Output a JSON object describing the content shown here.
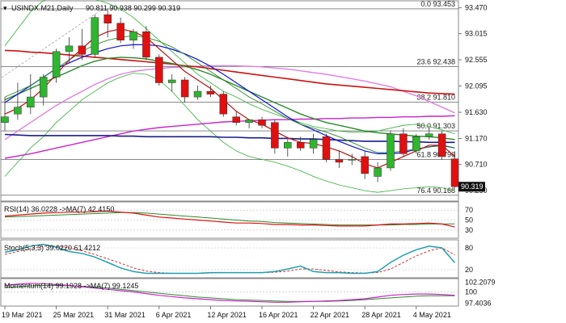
{
  "header": {
    "symbol": "USINDX.M21,Daily",
    "ohlc": "90.811 90.938 90.299 90.319"
  },
  "price_axis": {
    "ticks": [
      "93.470",
      "93.015",
      "92.555",
      "92.095",
      "91.630",
      "91.170",
      "90.710",
      "90.250"
    ],
    "tick_values": [
      93.47,
      93.015,
      92.555,
      92.095,
      91.63,
      91.17,
      90.71,
      90.25
    ],
    "ylim": [
      90.08,
      93.58
    ],
    "last_price": "90.319",
    "last_value": 90.319
  },
  "fib_levels": [
    {
      "label": "0.0 93.453",
      "value": 93.453
    },
    {
      "label": "23.6 92.438",
      "value": 92.438
    },
    {
      "label": "38.2 91.810",
      "value": 91.81
    },
    {
      "label": "50.0 91.303",
      "value": 91.303
    },
    {
      "label": "61.8 90.796",
      "value": 90.796
    },
    {
      "label": "76.4 90.168",
      "value": 90.168
    }
  ],
  "x_axis": {
    "labels": [
      "19 Mar 2021",
      "25 Mar 2021",
      "31 Mar 2021",
      "6 Apr 2021",
      "12 Apr 2021",
      "16 Apr 2021",
      "22 Apr 2021",
      "28 Apr 2021",
      "4 May 2021"
    ],
    "label_bar_index": [
      0,
      4,
      8,
      12,
      16,
      20,
      24,
      28,
      32
    ]
  },
  "rsi": {
    "label": "RSI(14) 36.0228 ->MA(7) 42.4150",
    "ticks": [
      "70",
      "50",
      "30"
    ],
    "tick_values": [
      70,
      50,
      30
    ],
    "ylim": [
      15,
      85
    ]
  },
  "stoch": {
    "label": "Stoch(5,3,3) 39.0220 61.4212",
    "ticks": [
      "80",
      "20"
    ],
    "tick_values": [
      80,
      20
    ],
    "ylim": [
      0,
      100
    ]
  },
  "momentum": {
    "label": "Momentum(14) 99.1928 ->MA(7) 99.1245",
    "ticks": [
      "102.2079",
      "100",
      "97.4036"
    ],
    "tick_values": [
      102.2079,
      100,
      97.4036
    ],
    "ylim": [
      96.9,
      102.9
    ]
  },
  "colors": {
    "bull": "#2fb52f",
    "bear": "#e01010",
    "sma_red": "#cc1111",
    "sma_navy": "#1a1a8c",
    "sma_magenta": "#cc22cc",
    "sma_pink": "#e080e0",
    "sma_green": "#2a8a2a",
    "bb": "#35b035",
    "fast_red": "#b81010",
    "fast_green": "#2a8a2a",
    "fast_blue": "#1010dd",
    "stoch_k": "#20a0b0",
    "stoch_d": "#cc2020"
  },
  "chart_data": {
    "type": "candlestick",
    "title": "USINDX.M21,Daily",
    "candles": [
      {
        "o": 91.45,
        "h": 91.9,
        "l": 91.3,
        "c": 91.55
      },
      {
        "o": 91.6,
        "h": 92.15,
        "l": 91.5,
        "c": 91.72
      },
      {
        "o": 91.72,
        "h": 92.3,
        "l": 91.6,
        "c": 91.9
      },
      {
        "o": 91.9,
        "h": 92.3,
        "l": 91.75,
        "c": 92.25
      },
      {
        "o": 92.25,
        "h": 92.75,
        "l": 92.15,
        "c": 92.7
      },
      {
        "o": 92.7,
        "h": 92.95,
        "l": 92.5,
        "c": 92.8
      },
      {
        "o": 92.8,
        "h": 93.1,
        "l": 92.55,
        "c": 92.65
      },
      {
        "o": 92.65,
        "h": 93.35,
        "l": 92.6,
        "c": 93.3
      },
      {
        "o": 93.35,
        "h": 93.45,
        "l": 92.95,
        "c": 93.2
      },
      {
        "o": 93.2,
        "h": 93.3,
        "l": 92.85,
        "c": 92.9
      },
      {
        "o": 92.9,
        "h": 93.1,
        "l": 92.75,
        "c": 93.05
      },
      {
        "o": 93.05,
        "h": 93.15,
        "l": 92.55,
        "c": 92.6
      },
      {
        "o": 92.6,
        "h": 92.65,
        "l": 92.1,
        "c": 92.15
      },
      {
        "o": 92.15,
        "h": 92.3,
        "l": 92.0,
        "c": 92.2
      },
      {
        "o": 92.2,
        "h": 92.25,
        "l": 91.8,
        "c": 91.9
      },
      {
        "o": 91.9,
        "h": 92.1,
        "l": 91.85,
        "c": 92.0
      },
      {
        "o": 92.0,
        "h": 92.1,
        "l": 91.9,
        "c": 91.95
      },
      {
        "o": 91.95,
        "h": 92.0,
        "l": 91.55,
        "c": 91.6
      },
      {
        "o": 91.55,
        "h": 91.65,
        "l": 91.4,
        "c": 91.45
      },
      {
        "o": 91.45,
        "h": 91.5,
        "l": 91.35,
        "c": 91.5
      },
      {
        "o": 91.5,
        "h": 91.55,
        "l": 91.35,
        "c": 91.4
      },
      {
        "o": 91.45,
        "h": 91.5,
        "l": 90.9,
        "c": 91.0
      },
      {
        "o": 91.0,
        "h": 91.15,
        "l": 90.85,
        "c": 91.1
      },
      {
        "o": 91.1,
        "h": 91.2,
        "l": 90.95,
        "c": 91.0
      },
      {
        "o": 91.0,
        "h": 91.25,
        "l": 90.9,
        "c": 91.15
      },
      {
        "o": 91.2,
        "h": 91.25,
        "l": 90.75,
        "c": 90.8
      },
      {
        "o": 90.8,
        "h": 90.95,
        "l": 90.65,
        "c": 90.75
      },
      {
        "o": 90.8,
        "h": 90.9,
        "l": 90.7,
        "c": 90.8
      },
      {
        "o": 90.85,
        "h": 90.95,
        "l": 90.45,
        "c": 90.55
      },
      {
        "o": 90.5,
        "h": 90.75,
        "l": 90.4,
        "c": 90.65
      },
      {
        "o": 90.65,
        "h": 91.3,
        "l": 90.6,
        "c": 91.25
      },
      {
        "o": 91.25,
        "h": 91.35,
        "l": 90.85,
        "c": 90.9
      },
      {
        "o": 90.95,
        "h": 91.25,
        "l": 90.9,
        "c": 91.2
      },
      {
        "o": 91.2,
        "h": 91.35,
        "l": 91.15,
        "c": 91.25
      },
      {
        "o": 91.25,
        "h": 91.3,
        "l": 90.8,
        "c": 90.85
      },
      {
        "o": 90.81,
        "h": 90.94,
        "l": 90.3,
        "c": 90.32
      }
    ],
    "sma_red_long": [
      92.72,
      92.71,
      92.69,
      92.68,
      92.66,
      92.64,
      92.62,
      92.6,
      92.58,
      92.56,
      92.54,
      92.52,
      92.5,
      92.48,
      92.45,
      92.43,
      92.4,
      92.37,
      92.34,
      92.31,
      92.28,
      92.25,
      92.22,
      92.19,
      92.16,
      92.13,
      92.11,
      92.09,
      92.07,
      92.05,
      92.03,
      92.01,
      91.99,
      91.97,
      91.96,
      91.95
    ],
    "sma_navy": [
      91.24,
      91.23,
      91.22,
      91.22,
      91.22,
      91.22,
      91.22,
      91.22,
      91.22,
      91.21,
      91.21,
      91.2,
      91.2,
      91.2,
      91.2,
      91.2,
      91.2,
      91.19,
      91.19,
      91.18,
      91.18,
      91.17,
      91.17,
      91.16,
      91.16,
      91.15,
      91.14,
      91.13,
      91.12,
      91.12,
      91.12,
      91.11,
      91.11,
      91.1,
      91.1,
      91.1
    ],
    "sma_magenta": [
      90.82,
      90.86,
      90.9,
      90.95,
      91.0,
      91.05,
      91.1,
      91.15,
      91.2,
      91.25,
      91.3,
      91.33,
      91.36,
      91.38,
      91.4,
      91.42,
      91.44,
      91.46,
      91.47,
      91.48,
      91.49,
      91.5,
      91.5,
      91.51,
      91.51,
      91.52,
      91.52,
      91.53,
      91.53,
      91.54,
      91.54,
      91.55,
      91.55,
      91.56,
      91.56,
      91.57
    ],
    "sma_pink": [
      91.15,
      91.3,
      91.45,
      91.6,
      91.75,
      91.88,
      92.0,
      92.12,
      92.22,
      92.3,
      92.35,
      92.38,
      92.4,
      92.42,
      92.43,
      92.44,
      92.45,
      92.45,
      92.45,
      92.44,
      92.43,
      92.41,
      92.39,
      92.36,
      92.33,
      92.3,
      92.26,
      92.22,
      92.18,
      92.13,
      92.08,
      92.0,
      91.92,
      91.82,
      91.72,
      91.62
    ],
    "sma_green": [
      91.85,
      91.95,
      92.05,
      92.15,
      92.25,
      92.35,
      92.45,
      92.53,
      92.58,
      92.6,
      92.59,
      92.57,
      92.53,
      92.49,
      92.44,
      92.38,
      92.3,
      92.2,
      92.1,
      92.0,
      91.9,
      91.8,
      91.7,
      91.6,
      91.52,
      91.45,
      91.4,
      91.35,
      91.3,
      91.27,
      91.25,
      91.23,
      91.21,
      91.2,
      91.18,
      91.15
    ],
    "fast_red": [
      91.6,
      91.7,
      91.85,
      92.05,
      92.3,
      92.55,
      92.75,
      92.95,
      93.05,
      93.1,
      93.05,
      92.95,
      92.75,
      92.55,
      92.35,
      92.2,
      92.05,
      91.85,
      91.65,
      91.5,
      91.42,
      91.3,
      91.18,
      91.1,
      91.08,
      91.02,
      90.95,
      90.85,
      90.72,
      90.65,
      90.75,
      90.85,
      90.95,
      91.05,
      91.05,
      90.85
    ],
    "fast_green": [
      91.9,
      92.0,
      92.1,
      92.25,
      92.4,
      92.55,
      92.7,
      92.82,
      92.9,
      92.95,
      92.98,
      92.95,
      92.88,
      92.78,
      92.65,
      92.5,
      92.35,
      92.2,
      92.05,
      91.9,
      91.78,
      91.65,
      91.52,
      91.42,
      91.35,
      91.28,
      91.2,
      91.1,
      91.0,
      90.92,
      90.92,
      90.95,
      90.98,
      91.02,
      91.04,
      91.0
    ],
    "fast_blue": [
      91.8,
      91.95,
      92.1,
      92.25,
      92.4,
      92.5,
      92.6,
      92.68,
      92.75,
      92.8,
      92.82,
      92.82,
      92.8,
      92.74,
      92.66,
      92.56,
      92.44,
      92.3,
      92.15,
      92.0,
      91.85,
      91.7,
      91.55,
      91.42,
      91.32,
      91.22,
      91.12,
      91.03,
      90.95,
      90.9,
      90.9,
      90.92,
      90.98,
      91.02,
      91.05,
      91.0
    ],
    "bb_upper": [
      92.8,
      93.1,
      93.4,
      93.6,
      93.68,
      93.7,
      93.68,
      93.62,
      93.55,
      93.45,
      93.3,
      93.1,
      92.9,
      92.7,
      92.5,
      92.3,
      92.15,
      92.0,
      91.9,
      91.78,
      91.68,
      91.6,
      91.52,
      91.45,
      91.38,
      91.34,
      91.3,
      91.28,
      91.28,
      91.3,
      91.35,
      91.4,
      91.42,
      91.38,
      91.32,
      91.25
    ],
    "bb_lower": [
      90.5,
      90.75,
      91.0,
      91.2,
      91.45,
      91.65,
      91.85,
      92.0,
      92.15,
      92.25,
      92.32,
      92.3,
      92.2,
      92.0,
      91.75,
      91.5,
      91.3,
      91.1,
      90.95,
      90.85,
      90.8,
      90.75,
      90.68,
      90.6,
      90.5,
      90.42,
      90.35,
      90.3,
      90.25,
      90.22,
      90.25,
      90.28,
      90.3,
      90.32,
      90.3,
      90.25
    ],
    "rsi": [
      58,
      60,
      62,
      64,
      65,
      66,
      66,
      67,
      68,
      66,
      64,
      60,
      56,
      54,
      52,
      50,
      48,
      46,
      44,
      44,
      43,
      41,
      41,
      40,
      40,
      39,
      38,
      38,
      38,
      40,
      42,
      42,
      43,
      44,
      42,
      36
    ],
    "rsi_ma": [
      56,
      57,
      58,
      59,
      60,
      61,
      62,
      63,
      64,
      65,
      65,
      64,
      62,
      60,
      58,
      56,
      54,
      52,
      50,
      48,
      47,
      45,
      44,
      43,
      42,
      41,
      40,
      40,
      40,
      40,
      40,
      41,
      41,
      42,
      42,
      42.4
    ],
    "stoch_k": [
      68,
      75,
      85,
      90,
      82,
      70,
      65,
      55,
      40,
      25,
      15,
      10,
      10,
      10,
      10,
      10,
      12,
      12,
      12,
      12,
      12,
      15,
      22,
      30,
      15,
      12,
      12,
      10,
      10,
      15,
      40,
      60,
      75,
      85,
      80,
      39
    ],
    "stoch_d": [
      62,
      70,
      78,
      85,
      85,
      80,
      72,
      62,
      50,
      38,
      25,
      16,
      12,
      10,
      10,
      10,
      11,
      12,
      12,
      12,
      12,
      13,
      16,
      22,
      22,
      18,
      14,
      12,
      11,
      12,
      22,
      40,
      58,
      72,
      80,
      61
    ],
    "momentum": [
      101.5,
      101.8,
      102.0,
      101.9,
      101.7,
      101.5,
      101.2,
      100.9,
      100.6,
      100.3,
      100.0,
      99.6,
      99.2,
      98.9,
      98.6,
      98.4,
      98.2,
      98.0,
      97.9,
      97.8,
      97.7,
      97.6,
      97.6,
      97.7,
      97.8,
      97.9,
      98.0,
      98.2,
      98.4,
      98.8,
      99.2,
      99.4,
      99.5,
      99.5,
      99.4,
      99.2
    ],
    "momentum_ma": [
      101.0,
      101.2,
      101.4,
      101.5,
      101.5,
      101.4,
      101.3,
      101.1,
      100.9,
      100.6,
      100.3,
      100.0,
      99.7,
      99.4,
      99.1,
      98.8,
      98.6,
      98.4,
      98.2,
      98.1,
      98.0,
      97.9,
      97.8,
      97.8,
      97.8,
      97.8,
      97.9,
      98.0,
      98.2,
      98.4,
      98.6,
      98.8,
      99.0,
      99.1,
      99.1,
      99.12
    ]
  }
}
